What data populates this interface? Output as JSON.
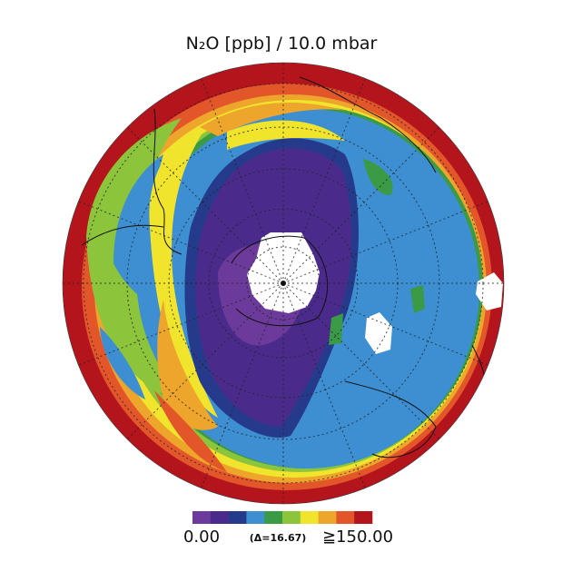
{
  "title": "N₂O [ppb] / 10.0 mbar",
  "colorbar": {
    "min_label": "0.00",
    "delta_label": "(Δ=16.67)",
    "max_label": "≧150.00",
    "colors": [
      "#6b3a9a",
      "#4a2b8c",
      "#253a8a",
      "#3d8fd2",
      "#3a9a46",
      "#8cc43c",
      "#f1e42c",
      "#eea52c",
      "#e2562a",
      "#b4141c"
    ]
  }
}
